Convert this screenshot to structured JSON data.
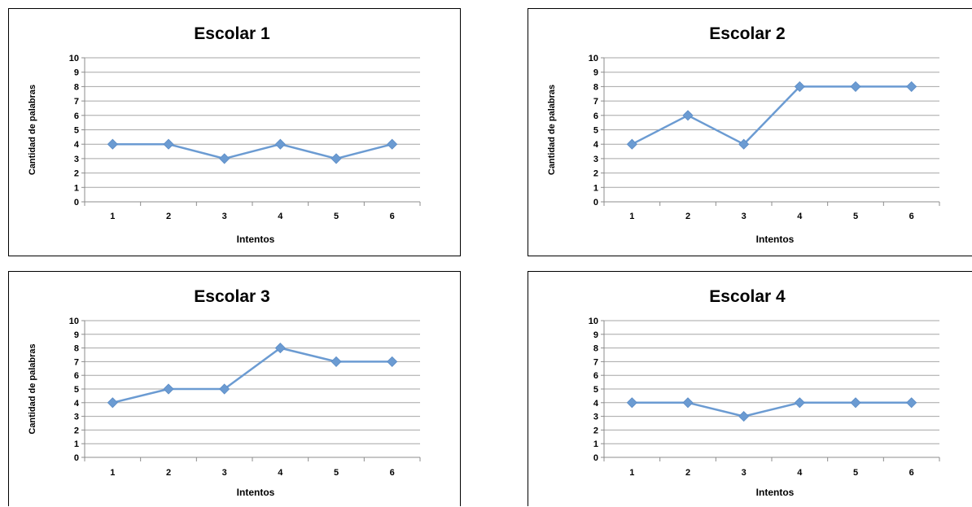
{
  "chart_data": [
    {
      "type": "line",
      "title": "Escolar 1",
      "xlabel": "Intentos",
      "ylabel": "Cantidad de palabras",
      "categories": [
        "1",
        "2",
        "3",
        "4",
        "5",
        "6"
      ],
      "values": [
        4,
        4,
        3,
        4,
        3,
        4
      ],
      "ylim": [
        0,
        10
      ],
      "yticks": [
        "0",
        "1",
        "2",
        "3",
        "4",
        "5",
        "6",
        "7",
        "8",
        "9",
        "10"
      ],
      "grid": "horizontal",
      "line_color": "#6B9BD2",
      "marker": "diamond"
    },
    {
      "type": "line",
      "title": "Escolar 2",
      "xlabel": "Intentos",
      "ylabel": "Cantidad de palabras",
      "categories": [
        "1",
        "2",
        "3",
        "4",
        "5",
        "6"
      ],
      "values": [
        4,
        6,
        4,
        8,
        8,
        8
      ],
      "ylim": [
        0,
        10
      ],
      "yticks": [
        "0",
        "1",
        "2",
        "3",
        "4",
        "5",
        "6",
        "7",
        "8",
        "9",
        "10"
      ],
      "grid": "horizontal",
      "line_color": "#6B9BD2",
      "marker": "diamond"
    },
    {
      "type": "line",
      "title": "Escolar 3",
      "xlabel": "Intentos",
      "ylabel": "Cantidad de palabras",
      "categories": [
        "1",
        "2",
        "3",
        "4",
        "5",
        "6"
      ],
      "values": [
        4,
        5,
        5,
        8,
        7,
        7
      ],
      "ylim": [
        0,
        10
      ],
      "yticks": [
        "0",
        "1",
        "2",
        "3",
        "4",
        "5",
        "6",
        "7",
        "8",
        "9",
        "10"
      ],
      "grid": "horizontal",
      "line_color": "#6B9BD2",
      "marker": "diamond"
    },
    {
      "type": "line",
      "title": "Escolar 4",
      "xlabel": "Intentos",
      "ylabel": "",
      "categories": [
        "1",
        "2",
        "3",
        "4",
        "5",
        "6"
      ],
      "values": [
        4,
        4,
        3,
        4,
        4,
        4
      ],
      "ylim": [
        0,
        10
      ],
      "yticks": [
        "0",
        "1",
        "2",
        "3",
        "4",
        "5",
        "6",
        "7",
        "8",
        "9",
        "10"
      ],
      "grid": "horizontal",
      "line_color": "#6B9BD2",
      "marker": "diamond"
    }
  ]
}
